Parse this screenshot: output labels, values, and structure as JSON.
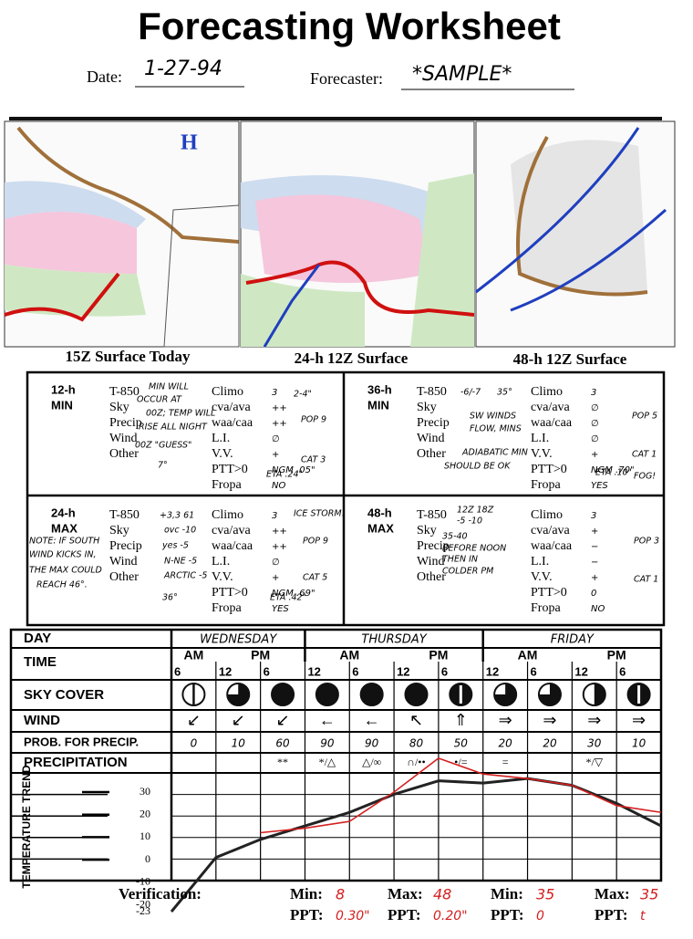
{
  "header": {
    "title": "Forecasting Worksheet",
    "date_label": "Date:",
    "date": "1-27-94",
    "forecaster_label": "Forecaster:",
    "forecaster": "*SAMPLE*"
  },
  "maps": {
    "captions": [
      "15Z Surface Today",
      "24-h 12Z Surface",
      "48-h 12Z Surface"
    ]
  },
  "panels": [
    {
      "period": "12-h",
      "kind": "MIN",
      "left_labels": [
        "T-850",
        "Sky",
        "Precip",
        "Wind",
        "Other"
      ],
      "right_labels": [
        "Climo",
        "cva/ava",
        "waa/caa",
        "L.I.",
        "V.V.",
        "PTT>0",
        "Fropa"
      ],
      "right_values": [
        "3",
        "++",
        "++",
        "∅",
        "+",
        "NGM .05\"",
        "NO"
      ],
      "notes": [
        "MIN WILL",
        "OCCUR AT",
        "00Z; TEMP WILL",
        "RISE ALL NIGHT",
        "00Z \"GUESS\"",
        "7°",
        "2-4\"",
        "POP 9",
        "CAT 3",
        "ETA .24\""
      ]
    },
    {
      "period": "36-h",
      "kind": "MIN",
      "left_labels": [
        "T-850",
        "Sky",
        "Precip",
        "Wind",
        "Other"
      ],
      "right_labels": [
        "Climo",
        "cva/ava",
        "waa/caa",
        "L.I.",
        "V.V.",
        "PTT>0",
        "Fropa"
      ],
      "right_values": [
        "3",
        "∅",
        "∅",
        "∅",
        "+",
        "NGM .70\"",
        "YES"
      ],
      "notes": [
        "-6/-7",
        "35°",
        "SW WINDS",
        "FLOW, MINS",
        "ADIABATIC MIN",
        "SHOULD BE OK",
        "POP 5",
        "CAT 1",
        "ETA .10\"",
        "FOG!"
      ]
    },
    {
      "period": "24-h",
      "kind": "MAX",
      "left_labels": [
        "T-850",
        "Sky",
        "Precip",
        "Wind",
        "Other"
      ],
      "right_labels": [
        "Climo",
        "cva/ava",
        "waa/caa",
        "L.I.",
        "V.V.",
        "PTT>0",
        "Fropa"
      ],
      "right_values": [
        "3",
        "++",
        "++",
        "∅",
        "+",
        "NGM .69\"",
        "YES"
      ],
      "notes": [
        "+3,3 61",
        "ovc -10",
        "yes -5",
        "N-NE -5",
        "ARCTIC -5",
        "36°",
        "NOTE: IF SOUTH",
        "WIND KICKS IN,",
        "THE MAX COULD",
        "REACH 46°.",
        "ICE STORM!",
        "POP 9",
        "CAT 5",
        "ETA .42\""
      ]
    },
    {
      "period": "48-h",
      "kind": "MAX",
      "left_labels": [
        "T-850",
        "Sky",
        "Precip",
        "Wind",
        "Other"
      ],
      "right_labels": [
        "Climo",
        "cva/ava",
        "waa/caa",
        "L.I.",
        "V.V.",
        "PTT>0",
        "Fropa"
      ],
      "right_values": [
        "3",
        "+",
        "−",
        "−",
        "+",
        "0",
        "NO"
      ],
      "notes": [
        "12Z 18Z",
        "-5 -10",
        "35-40",
        "BEFORE NOON",
        "THEN IN",
        "COLDER PM",
        "POP 3",
        "CAT 1"
      ]
    }
  ],
  "table": {
    "row_labels": [
      "DAY",
      "TIME",
      "SKY COVER",
      "WIND",
      "PROB. FOR PRECIP.",
      "PRECIPITATION",
      "TEMPERATURE TREND"
    ],
    "days": [
      "WEDNESDAY",
      "THURSDAY",
      "FRIDAY"
    ],
    "am_pm": [
      "AM",
      "PM",
      "AM",
      "PM",
      "AM",
      "PM"
    ],
    "times": [
      6,
      12,
      6,
      12,
      6,
      12,
      6,
      12,
      6,
      12,
      6
    ],
    "sky_cover_oktas": [
      1,
      6,
      8,
      8,
      8,
      8,
      7,
      6,
      6,
      4,
      7
    ],
    "wind": [
      "↙",
      "↙",
      "↙",
      "←",
      "←",
      "↖",
      "⇑",
      "⇒",
      "⇒",
      "⇒",
      "⇒"
    ],
    "prob_precip": [
      0,
      10,
      60,
      90,
      90,
      80,
      50,
      20,
      20,
      30,
      10
    ],
    "precipitation": [
      null,
      null,
      "**",
      "*/△",
      "△/∞",
      "∩/••",
      "•/=",
      "=",
      null,
      "*/▽",
      null
    ]
  },
  "temperature_trend": {
    "ylim": [
      -23,
      30
    ],
    "yticks": [
      30,
      20,
      10,
      0,
      -10,
      -20,
      -23
    ],
    "forecast": [
      -23,
      1,
      9,
      15,
      21,
      29,
      35,
      34,
      36,
      33,
      25,
      15
    ],
    "observed": [
      null,
      null,
      12,
      14,
      17,
      30,
      45,
      38,
      36,
      33,
      24,
      21
    ]
  },
  "verification": {
    "label": "Verification:",
    "items": [
      {
        "kind": "Min:",
        "value": "8",
        "ppt_label": "PPT:",
        "ppt": "0.30\""
      },
      {
        "kind": "Max:",
        "value": "48",
        "ppt_label": "PPT:",
        "ppt": "0.20\""
      },
      {
        "kind": "Min:",
        "value": "35",
        "ppt_label": "PPT:",
        "ppt": "0"
      },
      {
        "kind": "Max:",
        "value": "35",
        "ppt_label": "PPT:",
        "ppt": "t"
      }
    ]
  }
}
